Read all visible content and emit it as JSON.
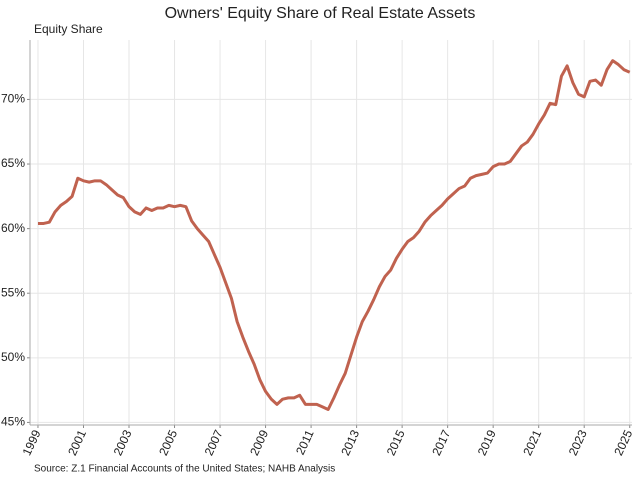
{
  "chart_data": {
    "type": "line",
    "title": "Owners' Equity Share of Real Estate Assets",
    "y_label": "Equity Share",
    "source": "Source: Z.1 Financial Accounts of the United States; NAHB Analysis",
    "x": [
      1999.0,
      1999.25,
      1999.5,
      1999.75,
      2000.0,
      2000.25,
      2000.5,
      2000.75,
      2001.0,
      2001.25,
      2001.5,
      2001.75,
      2002.0,
      2002.25,
      2002.5,
      2002.75,
      2003.0,
      2003.25,
      2003.5,
      2003.75,
      2004.0,
      2004.25,
      2004.5,
      2004.75,
      2005.0,
      2005.25,
      2005.5,
      2005.75,
      2006.0,
      2006.25,
      2006.5,
      2006.75,
      2007.0,
      2007.25,
      2007.5,
      2007.75,
      2008.0,
      2008.25,
      2008.5,
      2008.75,
      2009.0,
      2009.25,
      2009.5,
      2009.75,
      2010.0,
      2010.25,
      2010.5,
      2010.75,
      2011.0,
      2011.25,
      2011.5,
      2011.75,
      2012.0,
      2012.25,
      2012.5,
      2012.75,
      2013.0,
      2013.25,
      2013.5,
      2013.75,
      2014.0,
      2014.25,
      2014.5,
      2014.75,
      2015.0,
      2015.25,
      2015.5,
      2015.75,
      2016.0,
      2016.25,
      2016.5,
      2016.75,
      2017.0,
      2017.25,
      2017.5,
      2017.75,
      2018.0,
      2018.25,
      2018.5,
      2018.75,
      2019.0,
      2019.25,
      2019.5,
      2019.75,
      2020.0,
      2020.25,
      2020.5,
      2020.75,
      2021.0,
      2021.25,
      2021.5,
      2021.75,
      2022.0,
      2022.25,
      2022.5,
      2022.75,
      2023.0,
      2023.25,
      2023.5,
      2023.75,
      2024.0,
      2024.25,
      2024.5,
      2024.75,
      2025.0
    ],
    "series": [
      {
        "name": "Equity Share",
        "color": "#c0624f",
        "values": [
          60.4,
          60.4,
          60.5,
          61.3,
          61.8,
          62.1,
          62.5,
          63.9,
          63.7,
          63.6,
          63.7,
          63.7,
          63.4,
          63.0,
          62.6,
          62.4,
          61.7,
          61.3,
          61.1,
          61.6,
          61.4,
          61.6,
          61.6,
          61.8,
          61.7,
          61.8,
          61.7,
          60.6,
          60.0,
          59.5,
          59.0,
          58.0,
          57.0,
          55.8,
          54.6,
          52.8,
          51.6,
          50.5,
          49.5,
          48.3,
          47.4,
          46.8,
          46.4,
          46.8,
          46.9,
          46.9,
          47.1,
          46.4,
          46.4,
          46.4,
          46.2,
          46.0,
          46.9,
          47.9,
          48.8,
          50.2,
          51.6,
          52.8,
          53.6,
          54.5,
          55.5,
          56.3,
          56.8,
          57.7,
          58.4,
          59.0,
          59.3,
          59.8,
          60.5,
          61.0,
          61.4,
          61.8,
          62.3,
          62.7,
          63.1,
          63.3,
          63.9,
          64.1,
          64.2,
          64.3,
          64.8,
          65.0,
          65.0,
          65.2,
          65.8,
          66.4,
          66.7,
          67.3,
          68.1,
          68.8,
          69.7,
          69.6,
          71.8,
          72.6,
          71.3,
          70.4,
          70.2,
          71.4,
          71.5,
          71.1,
          72.3,
          73.0,
          72.7,
          72.3,
          72.1
        ]
      }
    ],
    "xlim": [
      1998.65,
      2025.1
    ],
    "xticks": [
      1999,
      2001,
      2003,
      2005,
      2007,
      2009,
      2011,
      2013,
      2015,
      2017,
      2019,
      2021,
      2023,
      2025
    ],
    "ylim": [
      44.8,
      74.6
    ],
    "yticks": [
      {
        "value": 45,
        "label": "45%"
      },
      {
        "value": 50,
        "label": "50%"
      },
      {
        "value": 55,
        "label": "55%"
      },
      {
        "value": 60,
        "label": "60%"
      },
      {
        "value": 65,
        "label": "65%"
      },
      {
        "value": 70,
        "label": "70%"
      }
    ],
    "grid": true
  }
}
